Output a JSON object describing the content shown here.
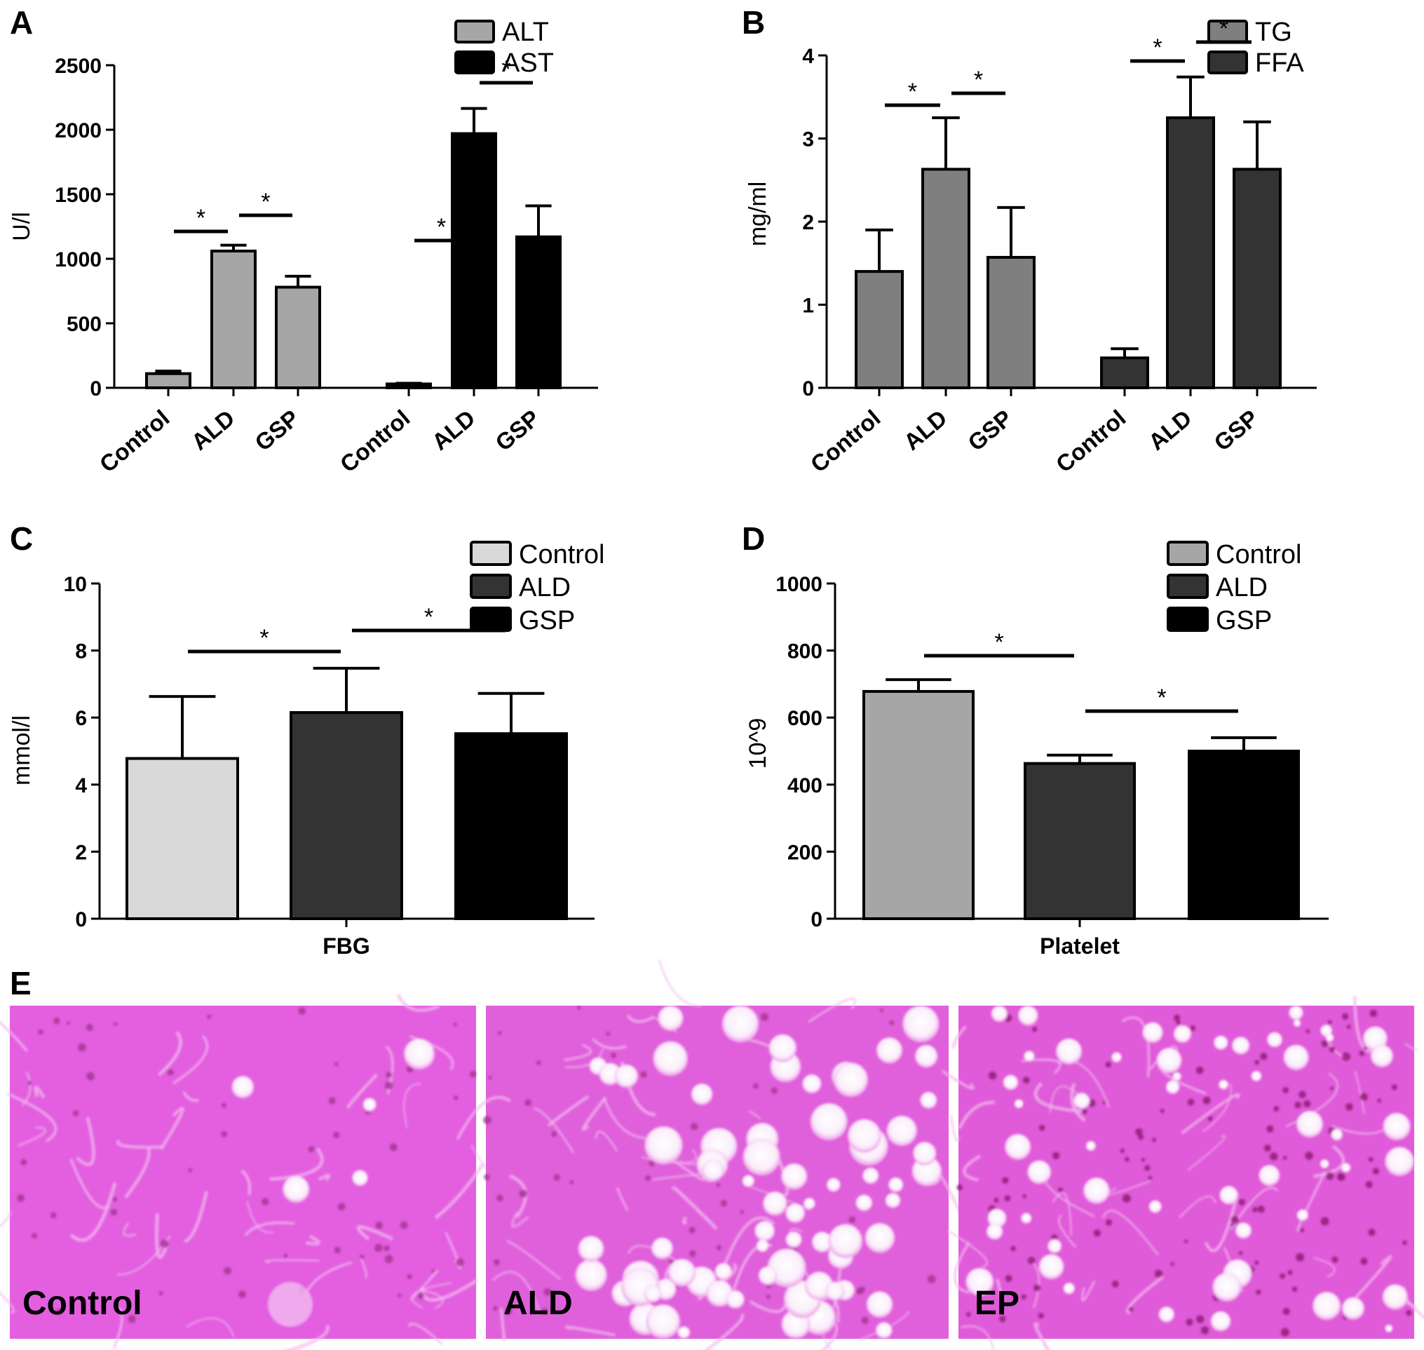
{
  "chart_data": [
    {
      "panel": "A",
      "type": "bar",
      "ylabel": "U/l",
      "ylim": [
        0,
        2500
      ],
      "yticks": [
        0,
        500,
        1000,
        1500,
        2000,
        2500
      ],
      "categories": [
        "Control",
        "ALD",
        "GSP"
      ],
      "series": [
        {
          "name": "ALT",
          "color": "#a6a6a6",
          "values": [
            110,
            1060,
            780
          ],
          "errors": [
            20,
            45,
            85
          ]
        },
        {
          "name": "AST",
          "color": "#000000",
          "values": [
            30,
            1970,
            1170
          ],
          "errors": [
            5,
            195,
            240
          ]
        }
      ],
      "significance": [
        {
          "series": 0,
          "from": 0,
          "to": 1,
          "label": "*"
        },
        {
          "series": 0,
          "from": 1,
          "to": 2,
          "label": "*"
        },
        {
          "series": 1,
          "from": 0,
          "to": 1,
          "label": "*"
        },
        {
          "series": 1,
          "from": 1,
          "to": 2,
          "label": "*"
        }
      ],
      "legend": "top-right"
    },
    {
      "panel": "B",
      "type": "bar",
      "ylabel": "mg/ml",
      "ylim": [
        0,
        4
      ],
      "yticks": [
        0,
        1,
        2,
        3,
        4
      ],
      "categories": [
        "Control",
        "ALD",
        "GSP"
      ],
      "series": [
        {
          "name": "TG",
          "color": "#7f7f7f",
          "values": [
            1.4,
            2.63,
            1.57
          ],
          "errors": [
            0.5,
            0.62,
            0.6
          ]
        },
        {
          "name": "FFA",
          "color": "#333333",
          "values": [
            0.36,
            3.25,
            2.63
          ],
          "errors": [
            0.11,
            0.49,
            0.57
          ]
        }
      ],
      "significance": [
        {
          "series": 0,
          "from": 0,
          "to": 1,
          "label": "*"
        },
        {
          "series": 0,
          "from": 1,
          "to": 2,
          "label": "*"
        },
        {
          "series": 1,
          "from": 0,
          "to": 1,
          "label": "*"
        },
        {
          "series": 1,
          "from": 1,
          "to": 2,
          "label": "*"
        }
      ],
      "legend": "top-right"
    },
    {
      "panel": "C",
      "type": "bar",
      "ylabel": "mmol/l",
      "xlabel": "FBG",
      "ylim": [
        0,
        10
      ],
      "yticks": [
        0,
        2,
        4,
        6,
        8,
        10
      ],
      "series": [
        {
          "name": "Control",
          "color": "#d9d9d9",
          "value": 4.78,
          "error": 1.85
        },
        {
          "name": "ALD",
          "color": "#333333",
          "value": 6.15,
          "error": 1.32
        },
        {
          "name": "GSP",
          "color": "#000000",
          "value": 5.52,
          "error": 1.2
        }
      ],
      "significance": [
        {
          "from": 0,
          "to": 1,
          "label": "*"
        },
        {
          "from": 1,
          "to": 2,
          "label": "*"
        }
      ],
      "legend": "top-right"
    },
    {
      "panel": "D",
      "type": "bar",
      "ylabel": "10^9",
      "xlabel": "Platelet",
      "ylim": [
        0,
        1000
      ],
      "yticks": [
        0,
        200,
        400,
        600,
        800,
        1000
      ],
      "series": [
        {
          "name": "Control",
          "color": "#a6a6a6",
          "value": 678,
          "error": 35
        },
        {
          "name": "ALD",
          "color": "#333333",
          "value": 463,
          "error": 25
        },
        {
          "name": "GSP",
          "color": "#000000",
          "value": 500,
          "error": 40
        }
      ],
      "significance": [
        {
          "from": 0,
          "to": 1,
          "label": "*"
        },
        {
          "from": 1,
          "to": 2,
          "label": "*"
        }
      ],
      "legend": "top-right"
    }
  ],
  "micrographs": {
    "panel": "E",
    "labels": [
      "Control",
      "ALD",
      "EP"
    ]
  }
}
